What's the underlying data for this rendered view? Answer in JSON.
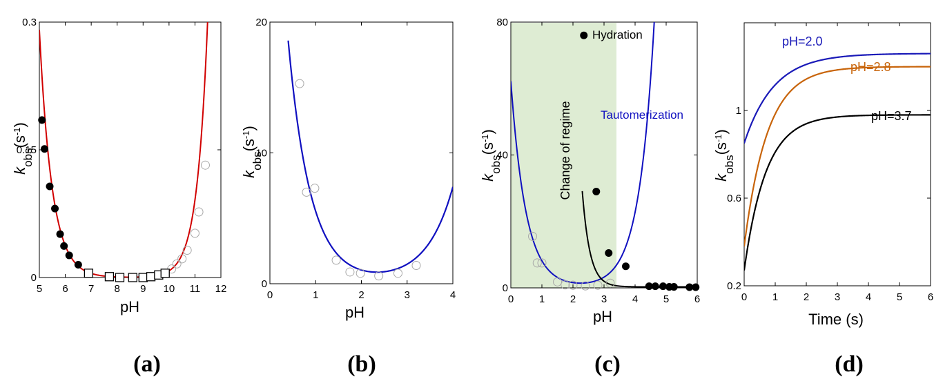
{
  "figure": {
    "x_label": "pH",
    "y_label": {
      "main": "k",
      "sub": "obs",
      "unit_open": "(s",
      "unit_sup": "-1",
      "unit_close": ")"
    }
  },
  "chart_data": [
    {
      "id": "a",
      "type": "scatter",
      "caption": "(a)",
      "xlabel": "pH",
      "ylabel": "kobs(s-1)",
      "xlim": [
        5,
        12
      ],
      "ylim": [
        0,
        0.3
      ],
      "xticks": [
        5,
        6,
        7,
        8,
        9,
        10,
        11,
        12
      ],
      "yticks": [
        0,
        0.15,
        0.3
      ],
      "ytick_labels": [
        "0",
        "0.15",
        "0.3"
      ],
      "colors": {
        "curve": "#d10000",
        "filled": "#000000",
        "open": "#aaaaaa",
        "square": "#000000"
      },
      "series": [
        {
          "kind": "filled_circles",
          "x": [
            5.1,
            5.2,
            5.4,
            5.6,
            5.8,
            5.95,
            6.15,
            6.5
          ],
          "y": [
            0.185,
            0.151,
            0.107,
            0.081,
            0.051,
            0.037,
            0.026,
            0.015
          ]
        },
        {
          "kind": "open_squares",
          "x": [
            6.9,
            7.7,
            8.1,
            8.6,
            9.0,
            9.3,
            9.6,
            9.85
          ],
          "y": [
            0.005,
            0.001,
            0.0,
            0.0,
            0.0,
            0.001,
            0.003,
            0.005
          ]
        },
        {
          "kind": "open_circles",
          "x": [
            10.1,
            10.3,
            10.5,
            10.7,
            11.0,
            11.15,
            11.4
          ],
          "y": [
            0.01,
            0.016,
            0.022,
            0.032,
            0.052,
            0.077,
            0.132
          ]
        },
        {
          "kind": "curve",
          "fn": "exp_sum",
          "params": {
            "a": 3.2,
            "b": 2.1,
            "c": 6.5e-06,
            "d": 1.0,
            "e": 1.8e-13,
            "f": 2.45
          }
        }
      ]
    },
    {
      "id": "b",
      "type": "scatter",
      "caption": "(b)",
      "xlabel": "pH",
      "ylabel": "kobs(s-1)",
      "xlim": [
        0,
        4
      ],
      "ylim": [
        0,
        20
      ],
      "xticks": [
        0,
        1,
        2,
        3,
        4
      ],
      "yticks": [
        0,
        10,
        20
      ],
      "ytick_labels": [
        "0",
        "10",
        "20"
      ],
      "colors": {
        "curve": "#1010c0",
        "open": "#aaaaaa"
      },
      "series": [
        {
          "kind": "open_circles",
          "x": [
            0.65,
            0.8,
            0.98,
            1.45,
            1.75,
            1.98,
            2.38,
            2.8,
            3.2
          ],
          "y": [
            15.3,
            7.0,
            7.3,
            1.8,
            0.9,
            0.8,
            0.6,
            0.8,
            1.4
          ]
        },
        {
          "kind": "curve",
          "fn": "exp_sum",
          "params": {
            "a": 21.0,
            "b": 2.06,
            "c": 0.066,
            "d": 1.3,
            "e": 0.0,
            "f": 0.0,
            "cut_y": 20
          }
        }
      ]
    },
    {
      "id": "c",
      "type": "scatter",
      "caption": "(c)",
      "xlabel": "pH",
      "ylabel": "kobs(s-1)",
      "xlim": [
        0,
        6
      ],
      "ylim": [
        0,
        80
      ],
      "xticks": [
        0,
        1,
        2,
        3,
        4,
        5,
        6
      ],
      "yticks": [
        0,
        40,
        80
      ],
      "ytick_labels": [
        "0",
        "40",
        "80"
      ],
      "shaded_region": {
        "x": [
          0,
          3.4
        ],
        "color": "#deecd3"
      },
      "annotations": [
        "Hydration",
        "Tautomerization",
        "Change of regime"
      ],
      "colors": {
        "blue": "#1010c0",
        "black": "#000000",
        "open": "#aaaaaa"
      },
      "series": [
        {
          "name": "Hydration",
          "kind": "filled_circles",
          "x": [
            2.35,
            2.75,
            3.15,
            3.7,
            4.45,
            4.65,
            4.9,
            5.1,
            5.25,
            5.75,
            5.95
          ],
          "y": [
            76,
            29,
            10.5,
            6.5,
            0.5,
            0.5,
            0.5,
            0.3,
            0.3,
            0.2,
            0.2
          ]
        },
        {
          "kind": "open_circles",
          "x": [
            0.7,
            0.85,
            1.0,
            1.5,
            1.75,
            2.0,
            2.4,
            2.8,
            3.2
          ],
          "y": [
            15.5,
            7.5,
            7.5,
            1.8,
            0.9,
            0.8,
            0.6,
            0.8,
            1.4
          ]
        },
        {
          "name": "Tautomerization",
          "kind": "curve",
          "color": "blue",
          "fn": "exp_sum",
          "params": {
            "a": 62.0,
            "b": 2.06,
            "c": 0.12,
            "d": 1.55
          }
        },
        {
          "name": "Hydration",
          "kind": "curve",
          "color": "black",
          "fn": "decay",
          "params": {
            "A": 1300.0,
            "k": 1.2,
            "x0": 0.0
          }
        }
      ]
    },
    {
      "id": "d",
      "type": "line",
      "caption": "(d)",
      "xlabel": "Time (s)",
      "ylabel": "kobs(s-1)",
      "xlim": [
        0,
        6
      ],
      "ylim": [
        0.2,
        1.4
      ],
      "xticks": [
        0,
        1,
        2,
        3,
        4,
        5,
        6
      ],
      "yticks": [
        0.2,
        0.6,
        1.0
      ],
      "ytick_labels": [
        "0.2",
        "0.6",
        "1"
      ],
      "series": [
        {
          "name": "pH=2.0",
          "color": "#1a1ab8",
          "y0": 0.85,
          "yinf": 1.26,
          "tau": 0.95
        },
        {
          "name": "pH=2.8",
          "color": "#c8640a",
          "y0": 0.38,
          "yinf": 1.2,
          "tau": 0.75
        },
        {
          "name": "pH=3.7",
          "color": "#000000",
          "y0": 0.27,
          "yinf": 0.98,
          "tau": 0.7
        }
      ]
    }
  ]
}
